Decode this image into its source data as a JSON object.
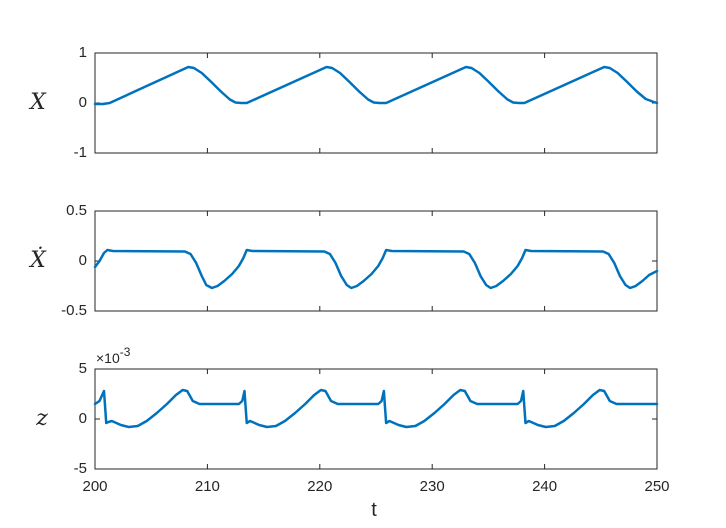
{
  "chart_data": [
    {
      "type": "line",
      "ylabel": "X",
      "xlim": [
        200,
        250
      ],
      "ylim": [
        -1,
        1
      ],
      "xticks": [
        200,
        210,
        220,
        230,
        240,
        250
      ],
      "yticks": [
        -1,
        0,
        1
      ],
      "ytick_labels": [
        "-1",
        "0",
        "1"
      ],
      "color": "#0072BD",
      "series": [
        {
          "x": [
            200,
            200.7,
            201.3,
            208.3,
            208.8,
            209.5,
            210.3,
            211.2,
            212.0,
            212.5,
            213.0,
            213.5,
            220.6,
            221.1,
            221.8,
            222.6,
            223.5,
            224.3,
            224.8,
            225.3,
            225.9,
            233.0,
            233.5,
            234.2,
            235.0,
            235.9,
            236.7,
            237.2,
            237.7,
            238.2,
            245.3,
            245.8,
            246.5,
            247.3,
            248.2,
            249.0,
            249.6,
            250
          ],
          "y": [
            -0.02,
            -0.02,
            0.0,
            0.72,
            0.7,
            0.6,
            0.43,
            0.23,
            0.07,
            0.01,
            0.0,
            0.0,
            0.72,
            0.7,
            0.6,
            0.43,
            0.23,
            0.07,
            0.01,
            0.0,
            0.0,
            0.72,
            0.7,
            0.6,
            0.43,
            0.23,
            0.07,
            0.01,
            0.0,
            0.0,
            0.72,
            0.7,
            0.6,
            0.43,
            0.23,
            0.08,
            0.03,
            0.0
          ]
        }
      ]
    },
    {
      "type": "line",
      "ylabel": "Ẋ",
      "xlim": [
        200,
        250
      ],
      "ylim": [
        -0.5,
        0.5
      ],
      "xticks": [
        200,
        210,
        220,
        230,
        240,
        250
      ],
      "yticks": [
        -0.5,
        0,
        0.5
      ],
      "ytick_labels": [
        "-0.5",
        "0",
        "0.5"
      ],
      "color": "#0072BD",
      "series": [
        {
          "x": [
            200,
            200.4,
            200.8,
            201.1,
            201.6,
            208.0,
            208.5,
            209.0,
            209.5,
            209.9,
            210.4,
            210.9,
            211.5,
            212.2,
            212.8,
            213.2,
            213.5,
            214.0,
            220.4,
            220.9,
            221.4,
            221.9,
            222.4,
            222.8,
            223.3,
            223.9,
            224.6,
            225.2,
            225.6,
            225.9,
            226.4,
            232.8,
            233.3,
            233.8,
            234.3,
            234.8,
            235.2,
            235.7,
            236.3,
            237.0,
            237.6,
            238.0,
            238.3,
            238.8,
            245.2,
            245.7,
            246.2,
            246.7,
            247.2,
            247.6,
            248.1,
            248.7,
            249.3,
            250
          ],
          "y": [
            -0.06,
            0.0,
            0.08,
            0.11,
            0.1,
            0.095,
            0.07,
            -0.02,
            -0.15,
            -0.24,
            -0.27,
            -0.25,
            -0.2,
            -0.13,
            -0.05,
            0.03,
            0.11,
            0.1,
            0.095,
            0.07,
            -0.02,
            -0.15,
            -0.24,
            -0.27,
            -0.25,
            -0.2,
            -0.13,
            -0.05,
            0.03,
            0.11,
            0.1,
            0.095,
            0.07,
            -0.02,
            -0.15,
            -0.24,
            -0.27,
            -0.25,
            -0.2,
            -0.13,
            -0.05,
            0.03,
            0.11,
            0.1,
            0.095,
            0.07,
            -0.02,
            -0.15,
            -0.24,
            -0.27,
            -0.25,
            -0.2,
            -0.14,
            -0.1
          ]
        }
      ]
    },
    {
      "type": "line",
      "ylabel": "z",
      "xlim": [
        200,
        250
      ],
      "ylim": [
        -0.005,
        0.005
      ],
      "xticks": [
        200,
        210,
        220,
        230,
        240,
        250
      ],
      "xtick_labels": [
        "200",
        "210",
        "220",
        "230",
        "240",
        "250"
      ],
      "xlabel": "t",
      "yticks": [
        -0.005,
        0,
        0.005
      ],
      "ytick_labels": [
        "-5",
        "0",
        "5"
      ],
      "exponent_base": "×10",
      "exponent_power": "-3",
      "color": "#0072BD",
      "series": [
        {
          "x": [
            200,
            200.4,
            200.8,
            201.0,
            201.2,
            201.5,
            202.3,
            203.0,
            203.8,
            204.6,
            205.5,
            206.4,
            207.2,
            207.8,
            208.2,
            208.7,
            209.3,
            212.8,
            213.1,
            213.3,
            213.5,
            213.8,
            214.6,
            215.3,
            216.1,
            216.9,
            217.8,
            218.7,
            219.5,
            220.1,
            220.5,
            221.0,
            221.6,
            225.2,
            225.5,
            225.7,
            225.9,
            226.2,
            227.0,
            227.7,
            228.5,
            229.3,
            230.2,
            231.1,
            231.9,
            232.5,
            232.9,
            233.4,
            234.0,
            237.6,
            237.9,
            238.1,
            238.3,
            238.6,
            239.4,
            240.1,
            240.9,
            241.7,
            242.6,
            243.5,
            244.3,
            244.9,
            245.3,
            245.8,
            246.4,
            250
          ],
          "y": [
            0.0015,
            0.0018,
            0.0028,
            -0.0004,
            -0.0003,
            -0.0002,
            -0.0006,
            -0.0008,
            -0.0007,
            -0.0002,
            0.0006,
            0.0015,
            0.0024,
            0.0029,
            0.0028,
            0.0018,
            0.0015,
            0.0015,
            0.0018,
            0.0028,
            -0.0004,
            -0.0002,
            -0.0006,
            -0.0008,
            -0.0007,
            -0.0002,
            0.0006,
            0.0015,
            0.0024,
            0.0029,
            0.0028,
            0.0018,
            0.0015,
            0.0015,
            0.0018,
            0.0028,
            -0.0004,
            -0.0002,
            -0.0006,
            -0.0008,
            -0.0007,
            -0.0002,
            0.0006,
            0.0015,
            0.0024,
            0.0029,
            0.0028,
            0.0018,
            0.0015,
            0.0015,
            0.0018,
            0.0028,
            -0.0004,
            -0.0002,
            -0.0006,
            -0.0008,
            -0.0007,
            -0.0002,
            0.0006,
            0.0015,
            0.0024,
            0.0029,
            0.0028,
            0.0018,
            0.0015,
            0.0015
          ]
        }
      ]
    }
  ]
}
